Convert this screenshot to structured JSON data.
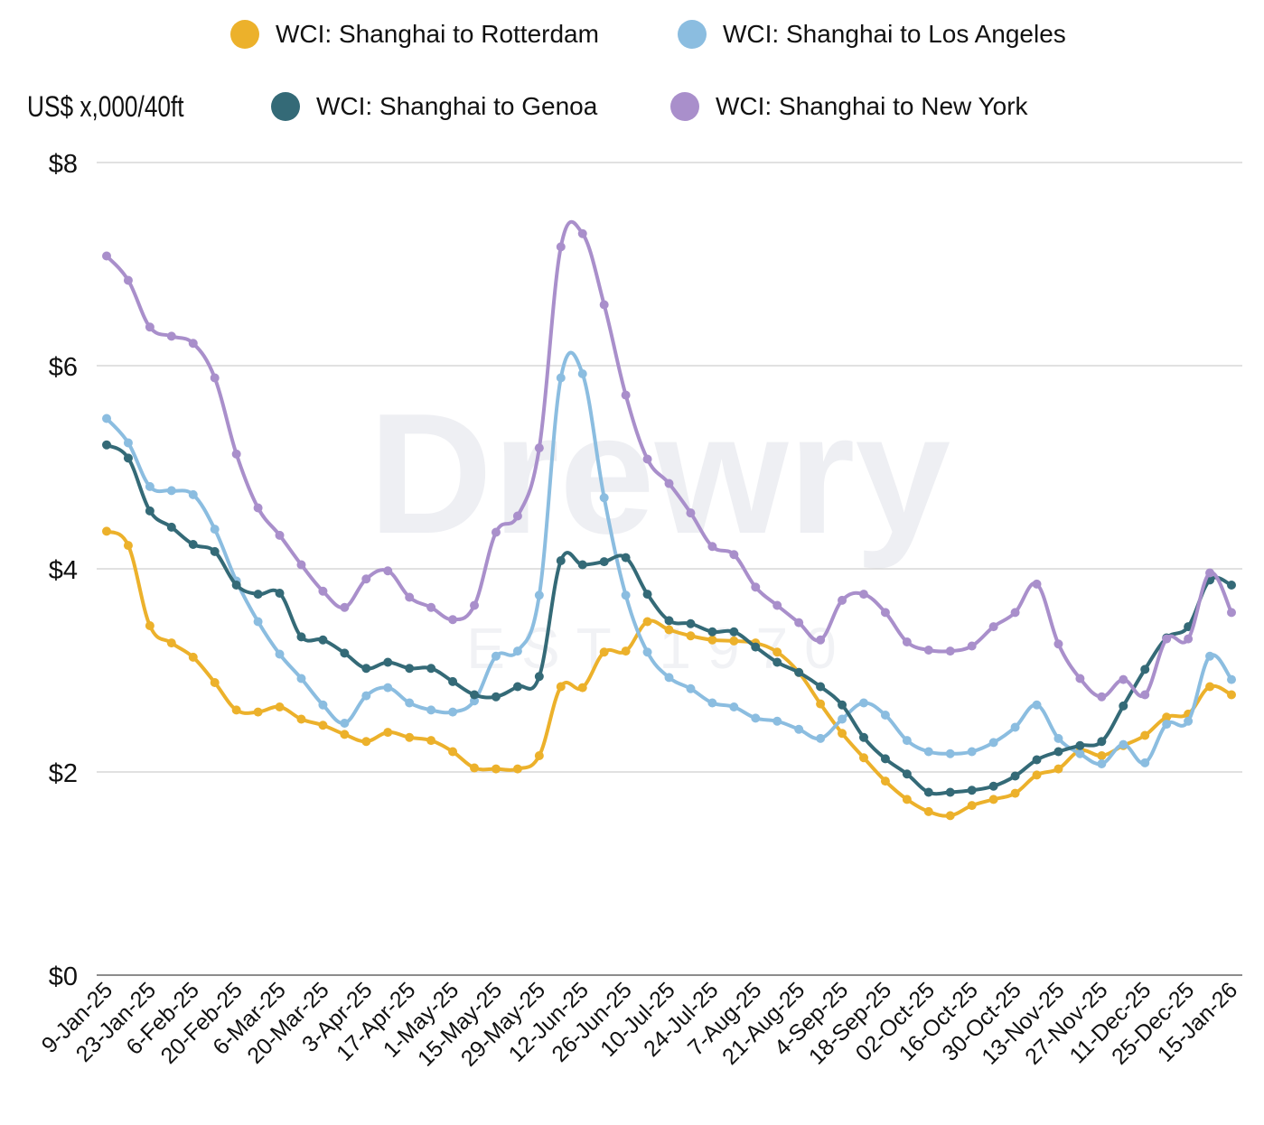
{
  "chart_data": {
    "type": "line",
    "ylabel": "US$ x,000/40ft",
    "ylim": [
      0,
      8
    ],
    "yticks": [
      0,
      2,
      4,
      6,
      8
    ],
    "ytick_labels": [
      "$0",
      "$2",
      "$4",
      "$6",
      "$8"
    ],
    "grid": true,
    "legend_placement": "top",
    "watermark": "Drewry",
    "watermark_sub": "EST 1970",
    "xtick_labels": [
      "9-Jan-25",
      "23-Jan-25",
      "6-Feb-25",
      "20-Feb-25",
      "6-Mar-25",
      "20-Mar-25",
      "3-Apr-25",
      "17-Apr-25",
      "1-May-25",
      "15-May-25",
      "29-May-25",
      "12-Jun-25",
      "26-Jun-25",
      "10-Jul-25",
      "24-Jul-25",
      "7-Aug-25",
      "21-Aug-25",
      "4-Sep-25",
      "18-Sep-25",
      "02-Oct-25",
      "16-Oct-25",
      "30-Oct-25",
      "13-Nov-25",
      "27-Nov-25",
      "11-Dec-25",
      "25-Dec-25",
      "15-Jan-26"
    ],
    "series": [
      {
        "name": "WCI: Shanghai to Rotterdam",
        "color": "#ECB12B",
        "values": [
          4.37,
          4.23,
          3.44,
          3.27,
          3.13,
          2.88,
          2.61,
          2.59,
          2.64,
          2.52,
          2.46,
          2.37,
          2.3,
          2.39,
          2.34,
          2.31,
          2.2,
          2.04,
          2.03,
          2.03,
          2.16,
          2.84,
          2.83,
          3.18,
          3.19,
          3.48,
          3.4,
          3.34,
          3.3,
          3.29,
          3.27,
          3.18,
          2.98,
          2.67,
          2.38,
          2.14,
          1.91,
          1.73,
          1.61,
          1.57,
          1.67,
          1.73,
          1.79,
          1.97,
          2.03,
          2.21,
          2.16,
          2.26,
          2.36,
          2.54,
          2.57,
          2.84,
          2.76
        ]
      },
      {
        "name": "WCI: Shanghai to Los Angeles",
        "color": "#8BBDE0",
        "values": [
          5.48,
          5.24,
          4.81,
          4.77,
          4.73,
          4.39,
          3.88,
          3.48,
          3.16,
          2.92,
          2.66,
          2.48,
          2.75,
          2.83,
          2.68,
          2.61,
          2.59,
          2.7,
          3.14,
          3.19,
          3.74,
          5.88,
          5.92,
          4.7,
          3.74,
          3.18,
          2.93,
          2.82,
          2.68,
          2.64,
          2.53,
          2.5,
          2.42,
          2.33,
          2.52,
          2.68,
          2.56,
          2.31,
          2.2,
          2.18,
          2.2,
          2.29,
          2.44,
          2.66,
          2.33,
          2.18,
          2.08,
          2.27,
          2.09,
          2.47,
          2.5,
          3.14,
          2.91
        ]
      },
      {
        "name": "WCI: Shanghai to Genoa",
        "color": "#346A77",
        "values": [
          5.22,
          5.09,
          4.57,
          4.41,
          4.24,
          4.17,
          3.84,
          3.75,
          3.76,
          3.33,
          3.3,
          3.17,
          3.02,
          3.08,
          3.02,
          3.02,
          2.89,
          2.76,
          2.74,
          2.84,
          2.94,
          4.08,
          4.04,
          4.07,
          4.11,
          3.75,
          3.49,
          3.46,
          3.38,
          3.38,
          3.23,
          3.08,
          2.98,
          2.84,
          2.66,
          2.34,
          2.13,
          1.98,
          1.8,
          1.8,
          1.82,
          1.86,
          1.96,
          2.12,
          2.2,
          2.26,
          2.3,
          2.65,
          3.01,
          3.32,
          3.43,
          3.89,
          3.84
        ]
      },
      {
        "name": "WCI: Shanghai to New York",
        "color": "#A98FCB",
        "values": [
          7.08,
          6.84,
          6.38,
          6.29,
          6.22,
          5.88,
          5.13,
          4.6,
          4.33,
          4.04,
          3.78,
          3.62,
          3.9,
          3.98,
          3.72,
          3.62,
          3.5,
          3.64,
          4.36,
          4.52,
          5.19,
          7.17,
          7.3,
          6.6,
          5.71,
          5.08,
          4.84,
          4.55,
          4.22,
          4.14,
          3.82,
          3.64,
          3.47,
          3.3,
          3.69,
          3.75,
          3.57,
          3.28,
          3.2,
          3.19,
          3.24,
          3.43,
          3.57,
          3.85,
          3.26,
          2.92,
          2.74,
          2.91,
          2.76,
          3.31,
          3.31,
          3.96,
          3.57
        ]
      }
    ]
  }
}
